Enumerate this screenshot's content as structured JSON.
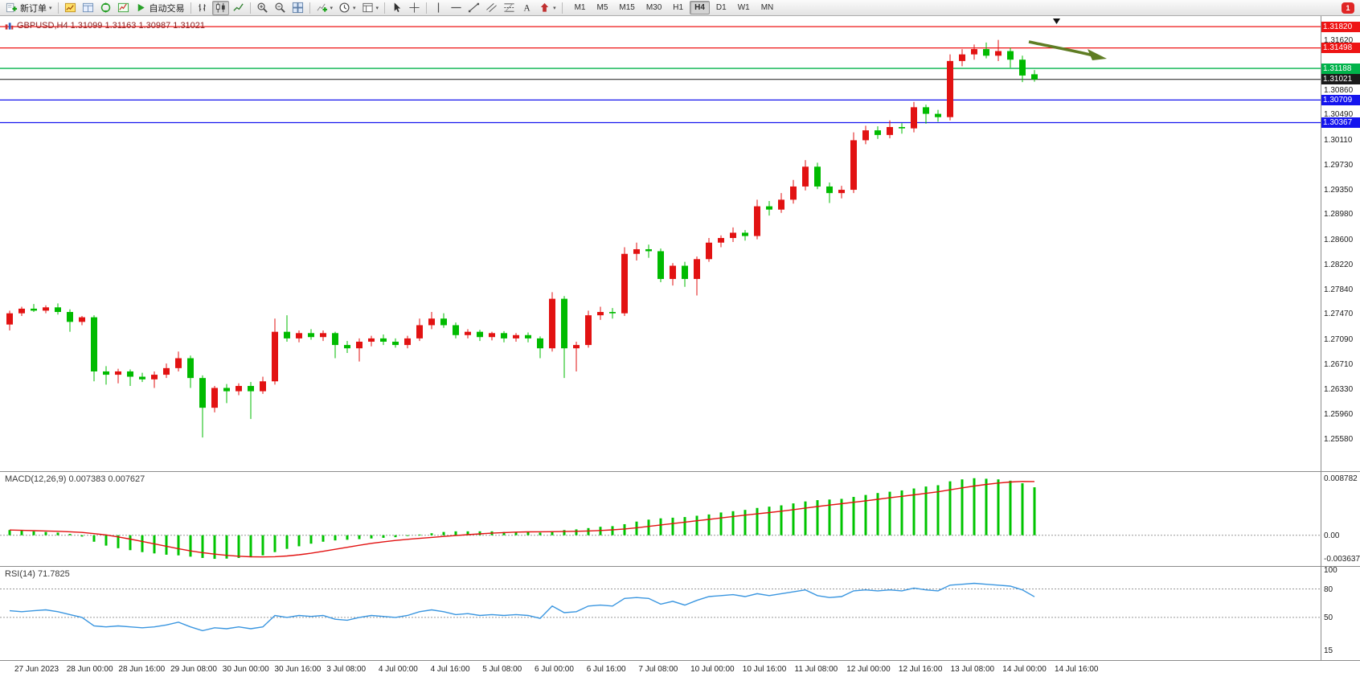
{
  "window": {
    "notification_count": "1"
  },
  "toolbar": {
    "items": [
      {
        "name": "new-order",
        "icon": "new-order",
        "label": "新订单",
        "dropdown": true
      },
      {
        "sep": true
      },
      {
        "name": "market-watch",
        "icon": "market-watch"
      },
      {
        "name": "data-window",
        "icon": "data-window"
      },
      {
        "name": "navigator",
        "icon": "navigator"
      },
      {
        "name": "terminal",
        "icon": "terminal"
      },
      {
        "name": "autotrading",
        "icon": "autotrading",
        "label": "自动交易"
      },
      {
        "sep": true
      },
      {
        "name": "bar-chart-mode",
        "icon": "bar-chart"
      },
      {
        "name": "candlestick-chart-mode",
        "icon": "candle-chart",
        "active": true
      },
      {
        "name": "line-chart-mode",
        "icon": "line-chart"
      },
      {
        "sep": true
      },
      {
        "name": "zoom-in",
        "icon": "zoom-in"
      },
      {
        "name": "zoom-out",
        "icon": "zoom-out"
      },
      {
        "name": "tile-windows",
        "icon": "tile-windows"
      },
      {
        "sep": true
      },
      {
        "name": "insert-indicator",
        "icon": "indicators",
        "dropdown": true
      },
      {
        "name": "periods",
        "icon": "periods",
        "dropdown": true
      },
      {
        "name": "templates",
        "icon": "templates",
        "dropdown": true
      },
      {
        "sep": true
      },
      {
        "name": "cursor-tool",
        "icon": "cursor"
      },
      {
        "name": "crosshair-tool",
        "icon": "crosshair"
      },
      {
        "sep": true
      },
      {
        "name": "vertical-line-tool",
        "icon": "vline"
      },
      {
        "name": "horizontal-line-tool",
        "icon": "hline"
      },
      {
        "name": "trendline-tool",
        "icon": "trendline"
      },
      {
        "name": "channel-tool",
        "icon": "channel"
      },
      {
        "name": "fibonacci-tool",
        "icon": "fibonacci"
      },
      {
        "name": "text-tool",
        "icon": "text"
      },
      {
        "name": "arrows-tool",
        "icon": "arrows",
        "dropdown": true
      },
      {
        "sep": true
      }
    ],
    "timeframes": [
      "M1",
      "M5",
      "M15",
      "M30",
      "H1",
      "H4",
      "D1",
      "W1",
      "MN"
    ],
    "active_timeframe": "H4"
  },
  "main_chart": {
    "title": "GBPUSD,H4 1.31099 1.31163 1.30987 1.31021",
    "symbol": "GBPUSD",
    "period": "H4",
    "ohlc": {
      "open": "1.31099",
      "high": "1.31163",
      "low": "1.30987",
      "close": "1.31021"
    },
    "levels": [
      {
        "price": 1.3182,
        "label": "1.31820",
        "color": "#ee1414",
        "type": "resistance-line"
      },
      {
        "price": 1.31498,
        "label": "1.31498",
        "color": "#ee1414",
        "type": "resistance-line"
      },
      {
        "price": 1.31188,
        "label": "1.31188",
        "color": "#00b24a",
        "type": "support-line"
      },
      {
        "price": 1.31021,
        "label": "1.31021",
        "color": "#1a1a1a",
        "type": "current-price-line"
      },
      {
        "price": 1.30709,
        "label": "1.30709",
        "color": "#1414ee",
        "type": "support-line"
      },
      {
        "price": 1.30367,
        "label": "1.30367",
        "color": "#1414ee",
        "type": "support-line"
      }
    ],
    "scale_labels": [
      "1.31620",
      "1.30860",
      "1.30490",
      "1.30110",
      "1.29730",
      "1.29350",
      "1.28980",
      "1.28600",
      "1.28220",
      "1.27840",
      "1.27470",
      "1.27090",
      "1.26710",
      "1.26330",
      "1.25960",
      "1.25580"
    ],
    "price_range": {
      "top": 1.3198,
      "bottom": 1.2509
    }
  },
  "chart_data": [
    {
      "type": "candlestick",
      "name": "GBPUSD H4",
      "up_color": "#e21212",
      "down_color": "#00bb00",
      "candles": [
        [
          1.2731,
          1.2752,
          1.2722,
          1.2748
        ],
        [
          1.2748,
          1.2758,
          1.2744,
          1.2755
        ],
        [
          1.2755,
          1.2762,
          1.275,
          1.2752
        ],
        [
          1.2752,
          1.276,
          1.2748,
          1.2757
        ],
        [
          1.2757,
          1.2763,
          1.2746,
          1.275
        ],
        [
          1.275,
          1.2754,
          1.272,
          1.2735
        ],
        [
          1.2735,
          1.2744,
          1.273,
          1.2742
        ],
        [
          1.2742,
          1.2745,
          1.2645,
          1.266
        ],
        [
          1.266,
          1.2668,
          1.264,
          1.2655
        ],
        [
          1.2655,
          1.2664,
          1.2642,
          1.266
        ],
        [
          1.266,
          1.2663,
          1.2638,
          1.2652
        ],
        [
          1.2652,
          1.2658,
          1.2644,
          1.2648
        ],
        [
          1.2648,
          1.266,
          1.2635,
          1.2655
        ],
        [
          1.2655,
          1.2672,
          1.265,
          1.2665
        ],
        [
          1.2665,
          1.269,
          1.266,
          1.268
        ],
        [
          1.268,
          1.2684,
          1.2635,
          1.265
        ],
        [
          1.265,
          1.2654,
          1.256,
          1.2605
        ],
        [
          1.2605,
          1.2638,
          1.2598,
          1.2635
        ],
        [
          1.2635,
          1.2641,
          1.2612,
          1.263
        ],
        [
          1.263,
          1.2642,
          1.2624,
          1.2638
        ],
        [
          1.2638,
          1.2644,
          1.2588,
          1.263
        ],
        [
          1.263,
          1.2652,
          1.2626,
          1.2645
        ],
        [
          1.2645,
          1.274,
          1.264,
          1.272
        ],
        [
          1.272,
          1.2745,
          1.2705,
          1.271
        ],
        [
          1.271,
          1.2722,
          1.2704,
          1.2718
        ],
        [
          1.2718,
          1.2724,
          1.2708,
          1.2712
        ],
        [
          1.2712,
          1.2722,
          1.2706,
          1.2718
        ],
        [
          1.2718,
          1.272,
          1.268,
          1.27
        ],
        [
          1.27,
          1.2706,
          1.2688,
          1.2695
        ],
        [
          1.2695,
          1.271,
          1.2675,
          1.2705
        ],
        [
          1.2705,
          1.2714,
          1.2698,
          1.271
        ],
        [
          1.271,
          1.2716,
          1.27,
          1.2705
        ],
        [
          1.2705,
          1.271,
          1.2696,
          1.27
        ],
        [
          1.27,
          1.2714,
          1.2695,
          1.271
        ],
        [
          1.271,
          1.274,
          1.2706,
          1.273
        ],
        [
          1.273,
          1.275,
          1.2724,
          1.274
        ],
        [
          1.274,
          1.2748,
          1.2726,
          1.273
        ],
        [
          1.273,
          1.2734,
          1.271,
          1.2715
        ],
        [
          1.2715,
          1.2724,
          1.271,
          1.272
        ],
        [
          1.272,
          1.2723,
          1.2706,
          1.2712
        ],
        [
          1.2712,
          1.272,
          1.2707,
          1.2718
        ],
        [
          1.2718,
          1.2721,
          1.2704,
          1.271
        ],
        [
          1.271,
          1.2718,
          1.2705,
          1.2715
        ],
        [
          1.2715,
          1.2719,
          1.2704,
          1.271
        ],
        [
          1.271,
          1.2713,
          1.268,
          1.2695
        ],
        [
          1.2695,
          1.278,
          1.269,
          1.277
        ],
        [
          1.277,
          1.2774,
          1.265,
          1.2695
        ],
        [
          1.2695,
          1.2705,
          1.266,
          1.27
        ],
        [
          1.27,
          1.2752,
          1.2696,
          1.2745
        ],
        [
          1.2745,
          1.2758,
          1.2738,
          1.275
        ],
        [
          1.275,
          1.2756,
          1.274,
          1.2748
        ],
        [
          1.2748,
          1.2848,
          1.2744,
          1.2838
        ],
        [
          1.2838,
          1.2855,
          1.2828,
          1.2845
        ],
        [
          1.2845,
          1.2852,
          1.2832,
          1.2842
        ],
        [
          1.2842,
          1.2846,
          1.2795,
          1.28
        ],
        [
          1.28,
          1.2824,
          1.279,
          1.282
        ],
        [
          1.282,
          1.2826,
          1.2788,
          1.28
        ],
        [
          1.28,
          1.2834,
          1.2775,
          1.283
        ],
        [
          1.283,
          1.2862,
          1.2826,
          1.2855
        ],
        [
          1.2855,
          1.2866,
          1.2848,
          1.2862
        ],
        [
          1.2862,
          1.2878,
          1.2856,
          1.287
        ],
        [
          1.287,
          1.2874,
          1.2858,
          1.2865
        ],
        [
          1.2865,
          1.292,
          1.286,
          1.291
        ],
        [
          1.291,
          1.2918,
          1.2896,
          1.2905
        ],
        [
          1.2905,
          1.293,
          1.29,
          1.292
        ],
        [
          1.292,
          1.295,
          1.2914,
          1.294
        ],
        [
          1.294,
          1.298,
          1.2934,
          1.297
        ],
        [
          1.297,
          1.2976,
          1.2936,
          1.294
        ],
        [
          1.294,
          1.2946,
          1.2915,
          1.293
        ],
        [
          1.293,
          1.2941,
          1.2922,
          1.2935
        ],
        [
          1.2935,
          1.3022,
          1.293,
          1.301
        ],
        [
          1.301,
          1.3032,
          1.3004,
          1.3025
        ],
        [
          1.3025,
          1.3031,
          1.3012,
          1.3018
        ],
        [
          1.3018,
          1.304,
          1.3013,
          1.303
        ],
        [
          1.303,
          1.3036,
          1.302,
          1.3028
        ],
        [
          1.3028,
          1.3068,
          1.3022,
          1.306
        ],
        [
          1.306,
          1.3064,
          1.3035,
          1.305
        ],
        [
          1.305,
          1.3056,
          1.3038,
          1.3045
        ],
        [
          1.3045,
          1.314,
          1.304,
          1.313
        ],
        [
          1.313,
          1.3148,
          1.3122,
          1.314
        ],
        [
          1.314,
          1.3155,
          1.3132,
          1.3148
        ],
        [
          1.3148,
          1.3158,
          1.3134,
          1.3138
        ],
        [
          1.3138,
          1.3162,
          1.313,
          1.3145
        ],
        [
          1.3145,
          1.315,
          1.312,
          1.3132
        ],
        [
          1.3132,
          1.3138,
          1.3098,
          1.3108
        ],
        [
          1.31099,
          1.31163,
          1.30987,
          1.31021
        ]
      ]
    },
    {
      "type": "bar",
      "name": "MACD(12,26,9)",
      "label": "MACD(12,26,9) 0.007383 0.007627",
      "value": "0.007383",
      "signal_value": "0.007627",
      "bar_color": "#00c400",
      "signal_color": "#e21212",
      "scale": [
        "0.008782",
        "0.00",
        "-0.003637"
      ],
      "scale_values": [
        0.008782,
        0,
        -0.003637
      ],
      "range": {
        "max": 0.009,
        "min": -0.004
      },
      "values": [
        0.0008,
        0.0007,
        0.0006,
        0.0005,
        0.0004,
        0.0002,
        -0.0002,
        -0.001,
        -0.0016,
        -0.002,
        -0.0023,
        -0.0026,
        -0.0028,
        -0.003,
        -0.0031,
        -0.0033,
        -0.0035,
        -0.003637,
        -0.0036,
        -0.0035,
        -0.0034,
        -0.0031,
        -0.0026,
        -0.0021,
        -0.0017,
        -0.0013,
        -0.001,
        -0.0008,
        -0.0007,
        -0.0006,
        -0.0005,
        -0.0004,
        -0.0003,
        -0.0001,
        0.0001,
        0.0003,
        0.0005,
        0.0006,
        0.0006,
        0.0006,
        0.0006,
        0.0005,
        0.0005,
        0.0005,
        0.0004,
        0.0006,
        0.0008,
        0.0009,
        0.0011,
        0.0013,
        0.0014,
        0.0017,
        0.0021,
        0.0024,
        0.0026,
        0.0027,
        0.0028,
        0.003,
        0.0032,
        0.0035,
        0.0037,
        0.0039,
        0.0042,
        0.0044,
        0.0046,
        0.0049,
        0.0052,
        0.0054,
        0.0055,
        0.0056,
        0.0059,
        0.0062,
        0.0065,
        0.0067,
        0.0069,
        0.0072,
        0.0075,
        0.0077,
        0.0083,
        0.0086,
        0.008782,
        0.0087,
        0.0086,
        0.0084,
        0.008,
        0.007383
      ]
    },
    {
      "type": "line",
      "name": "RSI(14)",
      "label": "RSI(14) 71.7825",
      "value": "71.7825",
      "color": "#3a96e0",
      "scale": [
        "100",
        "80",
        "50",
        "15"
      ],
      "scale_values": [
        100,
        80,
        50,
        15
      ],
      "dashed_levels": [
        80,
        50
      ],
      "range": {
        "max": 100,
        "min": 10
      },
      "values": [
        57,
        56,
        57,
        58,
        56,
        53,
        50,
        41,
        40,
        41,
        40,
        39,
        40,
        42,
        45,
        40,
        36,
        39,
        38,
        40,
        38,
        40,
        52,
        50,
        52,
        51,
        52,
        48,
        47,
        50,
        52,
        51,
        50,
        52,
        56,
        58,
        56,
        53,
        54,
        52,
        53,
        52,
        53,
        52,
        49,
        62,
        55,
        56,
        62,
        63,
        62,
        70,
        71,
        70,
        64,
        67,
        63,
        68,
        72,
        73,
        74,
        72,
        75,
        73,
        75,
        77,
        79,
        73,
        71,
        72,
        78,
        79,
        78,
        79,
        78,
        81,
        79,
        78,
        84,
        85,
        86,
        85,
        84,
        83,
        79,
        71.7825
      ]
    }
  ],
  "time_axis": {
    "labels": [
      "27 Jun 2023",
      "28 Jun 00:00",
      "28 Jun 16:00",
      "29 Jun 08:00",
      "30 Jun 00:00",
      "30 Jun 16:00",
      "3 Jul 08:00",
      "4 Jul 00:00",
      "4 Jul 16:00",
      "5 Jul 08:00",
      "6 Jul 00:00",
      "6 Jul 16:00",
      "7 Jul 08:00",
      "10 Jul 00:00",
      "10 Jul 16:00",
      "11 Jul 08:00",
      "12 Jul 00:00",
      "12 Jul 16:00",
      "13 Jul 08:00",
      "14 Jul 00:00",
      "14 Jul 16:00"
    ]
  },
  "annotations": {
    "trend_arrow_color": "#5f7d24",
    "marker_color": "#111111"
  }
}
